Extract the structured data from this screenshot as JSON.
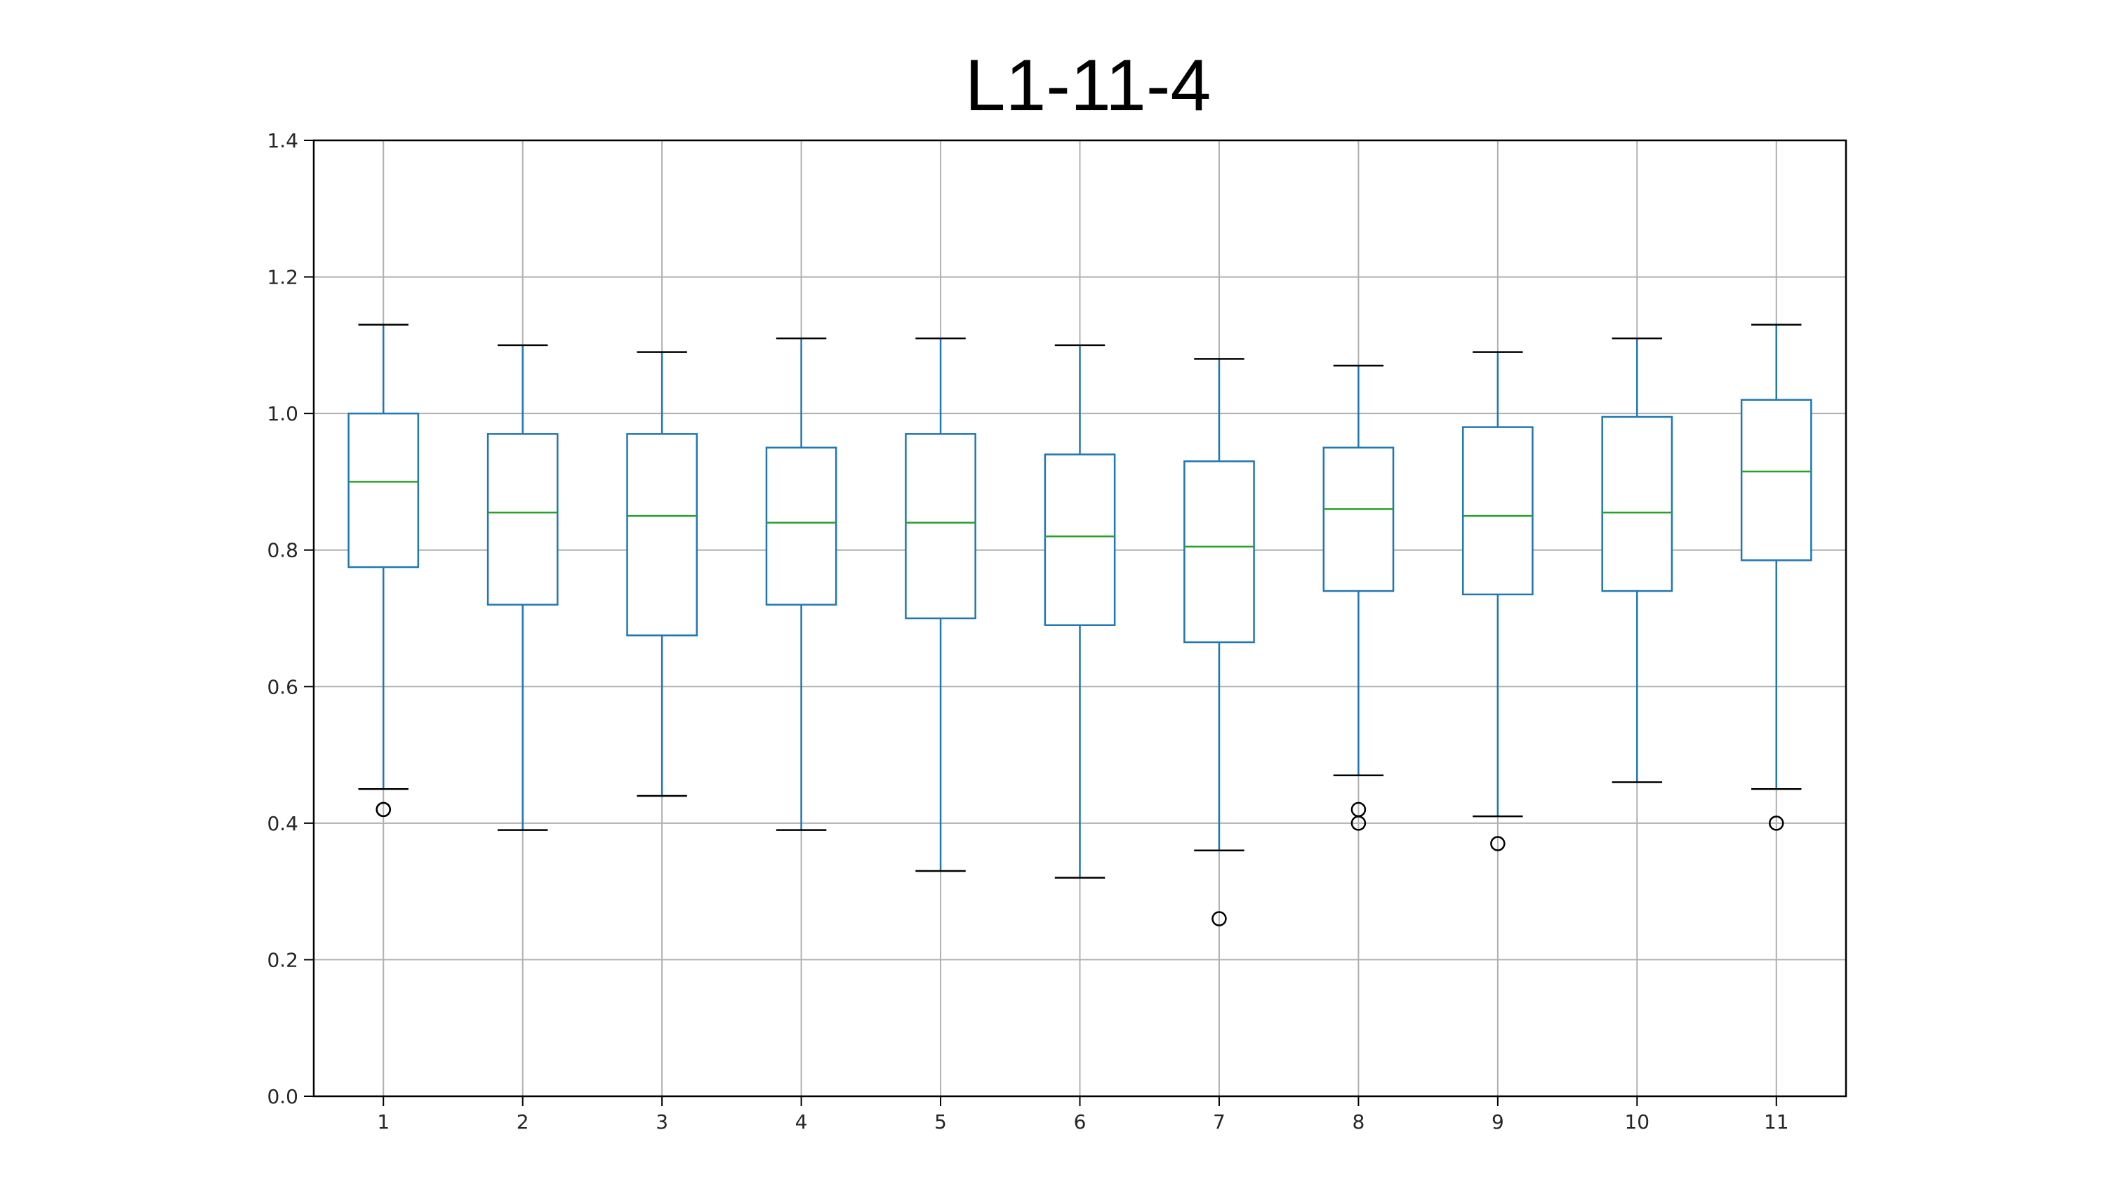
{
  "chart_data": {
    "type": "box",
    "title": "L1-11-4",
    "xlabel": "",
    "ylabel": "",
    "ylim": [
      0.0,
      1.4
    ],
    "yticks": [
      0.0,
      0.2,
      0.4,
      0.6,
      0.8,
      1.0,
      1.2,
      1.4
    ],
    "ytick_labels": [
      "0.0",
      "0.2",
      "0.4",
      "0.6",
      "0.8",
      "1.0",
      "1.2",
      "1.4"
    ],
    "grid": true,
    "colors": {
      "box": "#1f77b4",
      "median": "#2ca02c",
      "cap": "#000000",
      "grid": "#b0b0b0",
      "outlier": "#000000"
    },
    "categories": [
      "1",
      "2",
      "3",
      "4",
      "5",
      "6",
      "7",
      "8",
      "9",
      "10",
      "11"
    ],
    "boxes": [
      {
        "category": "1",
        "whisker_low": 0.45,
        "q1": 0.775,
        "median": 0.9,
        "q3": 1.0,
        "whisker_high": 1.13,
        "outliers": [
          0.42,
          0.42
        ]
      },
      {
        "category": "2",
        "whisker_low": 0.39,
        "q1": 0.72,
        "median": 0.855,
        "q3": 0.97,
        "whisker_high": 1.1,
        "outliers": []
      },
      {
        "category": "3",
        "whisker_low": 0.44,
        "q1": 0.675,
        "median": 0.85,
        "q3": 0.97,
        "whisker_high": 1.09,
        "outliers": []
      },
      {
        "category": "4",
        "whisker_low": 0.39,
        "q1": 0.72,
        "median": 0.84,
        "q3": 0.95,
        "whisker_high": 1.11,
        "outliers": []
      },
      {
        "category": "5",
        "whisker_low": 0.33,
        "q1": 0.7,
        "median": 0.84,
        "q3": 0.97,
        "whisker_high": 1.11,
        "outliers": []
      },
      {
        "category": "6",
        "whisker_low": 0.32,
        "q1": 0.69,
        "median": 0.82,
        "q3": 0.94,
        "whisker_high": 1.1,
        "outliers": []
      },
      {
        "category": "7",
        "whisker_low": 0.36,
        "q1": 0.665,
        "median": 0.805,
        "q3": 0.93,
        "whisker_high": 1.08,
        "outliers": [
          0.26
        ]
      },
      {
        "category": "8",
        "whisker_low": 0.47,
        "q1": 0.74,
        "median": 0.86,
        "q3": 0.95,
        "whisker_high": 1.07,
        "outliers": [
          0.42,
          0.4
        ]
      },
      {
        "category": "9",
        "whisker_low": 0.41,
        "q1": 0.735,
        "median": 0.85,
        "q3": 0.98,
        "whisker_high": 1.09,
        "outliers": [
          0.37
        ]
      },
      {
        "category": "10",
        "whisker_low": 0.46,
        "q1": 0.74,
        "median": 0.855,
        "q3": 0.995,
        "whisker_high": 1.11,
        "outliers": []
      },
      {
        "category": "11",
        "whisker_low": 0.45,
        "q1": 0.785,
        "median": 0.915,
        "q3": 1.02,
        "whisker_high": 1.13,
        "outliers": [
          0.4
        ]
      }
    ]
  }
}
